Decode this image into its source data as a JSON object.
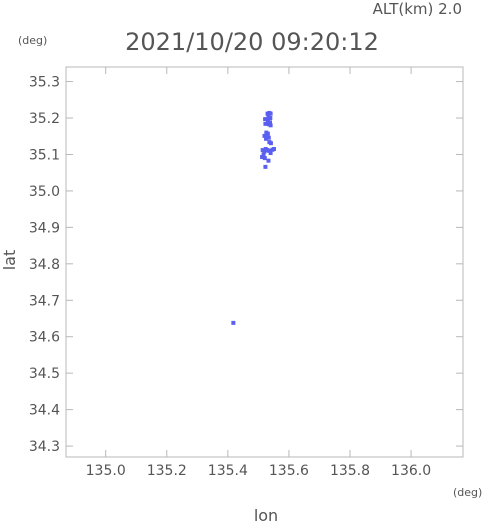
{
  "chart_data": {
    "type": "scatter",
    "title": "2021/10/20 09:20:12",
    "altitude_label": "ALT(km) 2.0",
    "xlabel": "lon",
    "ylabel": "lat",
    "x_unit": "(deg)",
    "y_unit": "(deg)",
    "xlim": [
      134.87,
      136.17
    ],
    "ylim": [
      34.27,
      35.34
    ],
    "x_ticks": [
      135.0,
      135.2,
      135.4,
      135.6,
      135.8,
      136.0
    ],
    "x_tick_labels": [
      "135.0",
      "135.2",
      "135.4",
      "135.6",
      "135.8",
      "136.0"
    ],
    "y_ticks": [
      34.3,
      34.4,
      34.5,
      34.6,
      34.7,
      34.8,
      34.9,
      35.0,
      35.1,
      35.2,
      35.3
    ],
    "y_tick_labels": [
      "34.3",
      "34.4",
      "34.5",
      "34.6",
      "34.7",
      "34.8",
      "34.9",
      "35.0",
      "35.1",
      "35.2",
      "35.3"
    ],
    "grid": false,
    "point_color": "#5a5ff0",
    "points": [
      {
        "lon": 135.53,
        "lat": 35.212
      },
      {
        "lon": 135.536,
        "lat": 35.214
      },
      {
        "lon": 135.54,
        "lat": 35.212
      },
      {
        "lon": 135.533,
        "lat": 35.203
      },
      {
        "lon": 135.539,
        "lat": 35.2
      },
      {
        "lon": 135.531,
        "lat": 35.193
      },
      {
        "lon": 135.538,
        "lat": 35.188
      },
      {
        "lon": 135.534,
        "lat": 35.183
      },
      {
        "lon": 135.54,
        "lat": 35.18
      },
      {
        "lon": 135.522,
        "lat": 35.197
      },
      {
        "lon": 135.523,
        "lat": 35.184
      },
      {
        "lon": 135.526,
        "lat": 35.16
      },
      {
        "lon": 135.531,
        "lat": 35.157
      },
      {
        "lon": 135.529,
        "lat": 35.15
      },
      {
        "lon": 135.534,
        "lat": 35.146
      },
      {
        "lon": 135.525,
        "lat": 35.143
      },
      {
        "lon": 135.52,
        "lat": 35.151
      },
      {
        "lon": 135.541,
        "lat": 35.131
      },
      {
        "lon": 135.536,
        "lat": 35.134
      },
      {
        "lon": 135.514,
        "lat": 35.112
      },
      {
        "lon": 135.52,
        "lat": 35.108
      },
      {
        "lon": 135.524,
        "lat": 35.115
      },
      {
        "lon": 135.53,
        "lat": 35.112
      },
      {
        "lon": 135.535,
        "lat": 35.11
      },
      {
        "lon": 135.546,
        "lat": 35.113
      },
      {
        "lon": 135.551,
        "lat": 35.115
      },
      {
        "lon": 135.54,
        "lat": 35.104
      },
      {
        "lon": 135.517,
        "lat": 35.1
      },
      {
        "lon": 135.512,
        "lat": 35.093
      },
      {
        "lon": 135.521,
        "lat": 35.09
      },
      {
        "lon": 135.533,
        "lat": 35.083
      },
      {
        "lon": 135.523,
        "lat": 35.066
      },
      {
        "lon": 135.418,
        "lat": 34.638
      }
    ]
  }
}
